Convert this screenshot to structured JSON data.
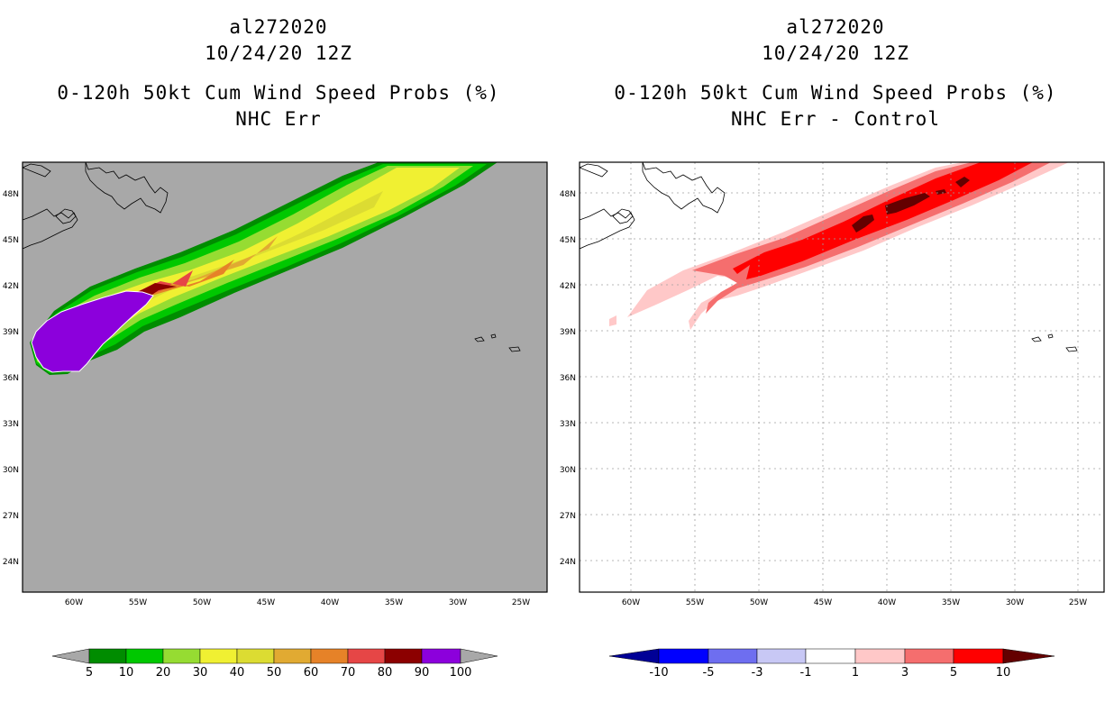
{
  "panels": [
    {
      "id": "left",
      "title_lines": [
        "al272020",
        "10/24/20 12Z",
        "0-120h 50kt Cum Wind Speed Probs (%)",
        "NHC Err"
      ],
      "background": "#a8a8a8",
      "colorbar": {
        "labels": [
          "5",
          "10",
          "20",
          "30",
          "40",
          "50",
          "60",
          "70",
          "80",
          "90",
          "100"
        ],
        "colors": [
          "#008c00",
          "#00c800",
          "#96dc32",
          "#f0f032",
          "#dcdc32",
          "#e1aa32",
          "#e68228",
          "#e64646",
          "#8c0000",
          "#8c00dc"
        ],
        "under_color": "#a8a8a8",
        "over_color": "#a8a8a8"
      }
    },
    {
      "id": "right",
      "title_lines": [
        "al272020",
        "10/24/20 12Z",
        "0-120h 50kt Cum Wind Speed Probs (%)",
        "NHC Err - Control"
      ],
      "background": "#ffffff",
      "colorbar": {
        "labels": [
          "-10",
          "-5",
          "-3",
          "-1",
          "1",
          "3",
          "5",
          "10"
        ],
        "colors": [
          "#0000ff",
          "#6e6ef0",
          "#c8c8f5",
          "#ffffff",
          "#ffc8c8",
          "#f56e6e",
          "#ff0000"
        ],
        "under_color": "#000096",
        "over_color": "#640000"
      }
    }
  ],
  "axes": {
    "lon_ticks": [
      "60W",
      "55W",
      "50W",
      "45W",
      "40W",
      "35W",
      "30W",
      "25W"
    ],
    "lat_ticks": [
      "48N",
      "45N",
      "42N",
      "39N",
      "36N",
      "33N",
      "30N",
      "27N",
      "24N"
    ]
  },
  "chart_data": [
    {
      "type": "heatmap",
      "title": "al272020 10/24/20 12Z 0-120h 50kt Cum Wind Speed Probs (%) NHC Err",
      "variable": "cumulative 50kt wind speed probability",
      "units": "%",
      "x_axis": {
        "label": "longitude",
        "range": [
          -64,
          -23
        ],
        "ticks": [
          "60W",
          "55W",
          "50W",
          "45W",
          "40W",
          "35W",
          "30W",
          "25W"
        ]
      },
      "y_axis": {
        "label": "latitude",
        "range": [
          22,
          50
        ],
        "ticks": [
          "48N",
          "45N",
          "42N",
          "39N",
          "36N",
          "33N",
          "30N",
          "27N",
          "24N"
        ]
      },
      "contour_levels": [
        5,
        10,
        20,
        30,
        40,
        50,
        60,
        70,
        80,
        90,
        100
      ],
      "features": [
        {
          "label": "peak >= 90%",
          "lon_range": [
            -64,
            -55
          ],
          "lat_range": [
            36.5,
            41.5
          ]
        },
        {
          "label": "swath of 5-40% extending NE",
          "lon_range": [
            -58,
            -30
          ],
          "lat_range": [
            37,
            50
          ]
        }
      ]
    },
    {
      "type": "heatmap",
      "title": "al272020 10/24/20 12Z 0-120h 50kt Cum Wind Speed Probs (%) NHC Err - Control",
      "variable": "probability difference",
      "units": "%",
      "x_axis": {
        "label": "longitude",
        "range": [
          -64,
          -23
        ],
        "ticks": [
          "60W",
          "55W",
          "50W",
          "45W",
          "40W",
          "35W",
          "30W",
          "25W"
        ]
      },
      "y_axis": {
        "label": "latitude",
        "range": [
          22,
          50
        ],
        "ticks": [
          "48N",
          "45N",
          "42N",
          "39N",
          "36N",
          "33N",
          "30N",
          "27N",
          "24N"
        ]
      },
      "contour_levels": [
        -10,
        -5,
        -3,
        -1,
        1,
        3,
        5,
        10
      ],
      "features": [
        {
          "label": "positive difference swath 1-10%",
          "lon_range": [
            -59,
            -30
          ],
          "lat_range": [
            39,
            50
          ]
        },
        {
          "label": "max > 10%",
          "lon_range": [
            -44,
            -35
          ],
          "lat_range": [
            45.5,
            48.5
          ]
        }
      ]
    }
  ]
}
